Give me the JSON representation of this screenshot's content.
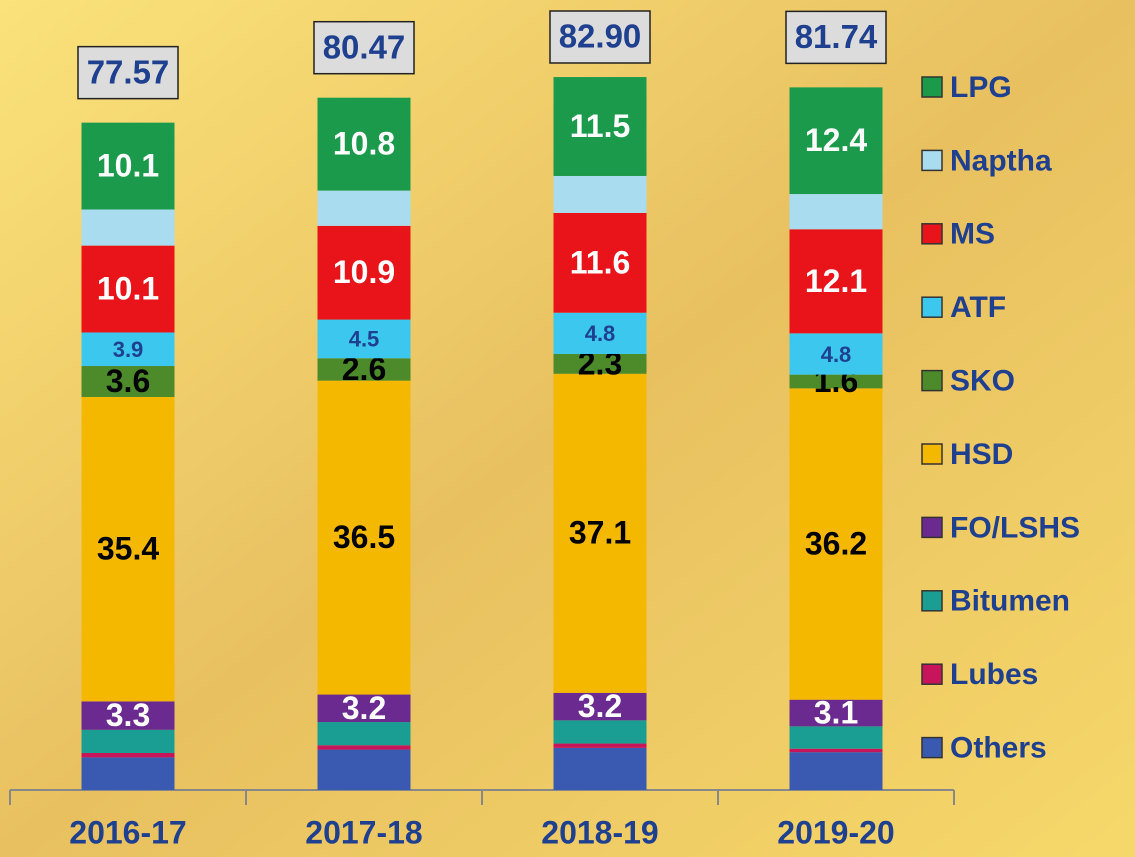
{
  "chart_data": {
    "type": "stacked_bar",
    "categories": [
      "2016-17",
      "2017-18",
      "2018-19",
      "2019-20"
    ],
    "total_labels": [
      "77.57",
      "80.47",
      "82.90",
      "81.74"
    ],
    "series": [
      {
        "name": "Others",
        "color": "#3a5ab2",
        "values": [
          3.8,
          4.7,
          4.9,
          4.4
        ]
      },
      {
        "name": "Lubes",
        "color": "#c8145a",
        "values": [
          0.5,
          0.5,
          0.5,
          0.4
        ]
      },
      {
        "name": "Bitumen",
        "color": "#1a9e94",
        "values": [
          2.7,
          2.7,
          2.7,
          2.6
        ]
      },
      {
        "name": "FO/LSHS",
        "color": "#6a2a90",
        "values": [
          3.3,
          3.2,
          3.2,
          3.1
        ],
        "value_labels": [
          "3.3",
          "3.2",
          "3.2",
          "3.1"
        ]
      },
      {
        "name": "HSD",
        "color": "#f5b800",
        "values": [
          35.4,
          36.5,
          37.1,
          36.2
        ],
        "value_labels": [
          "35.4",
          "36.5",
          "37.1",
          "36.2"
        ]
      },
      {
        "name": "SKO",
        "color": "#4c8a2a",
        "values": [
          3.6,
          2.6,
          2.3,
          1.6
        ],
        "value_labels": [
          "3.6",
          "2.6",
          "2.3",
          "1.6"
        ]
      },
      {
        "name": "ATF",
        "color": "#3cc8ee",
        "values": [
          3.9,
          4.5,
          4.8,
          4.8
        ],
        "value_labels": [
          "3.9",
          "4.5",
          "4.8",
          "4.8"
        ]
      },
      {
        "name": "MS",
        "color": "#e8141a",
        "values": [
          10.1,
          10.9,
          11.6,
          12.1
        ],
        "value_labels": [
          "10.1",
          "10.9",
          "11.6",
          "12.1"
        ]
      },
      {
        "name": "Naptha",
        "color": "#a8dcee",
        "values": [
          4.2,
          4.1,
          4.3,
          4.1
        ]
      },
      {
        "name": "LPG",
        "color": "#1a9a4a",
        "values": [
          10.1,
          10.8,
          11.5,
          12.4
        ],
        "value_labels": [
          "10.1",
          "10.8",
          "11.5",
          "12.4"
        ]
      }
    ]
  }
}
